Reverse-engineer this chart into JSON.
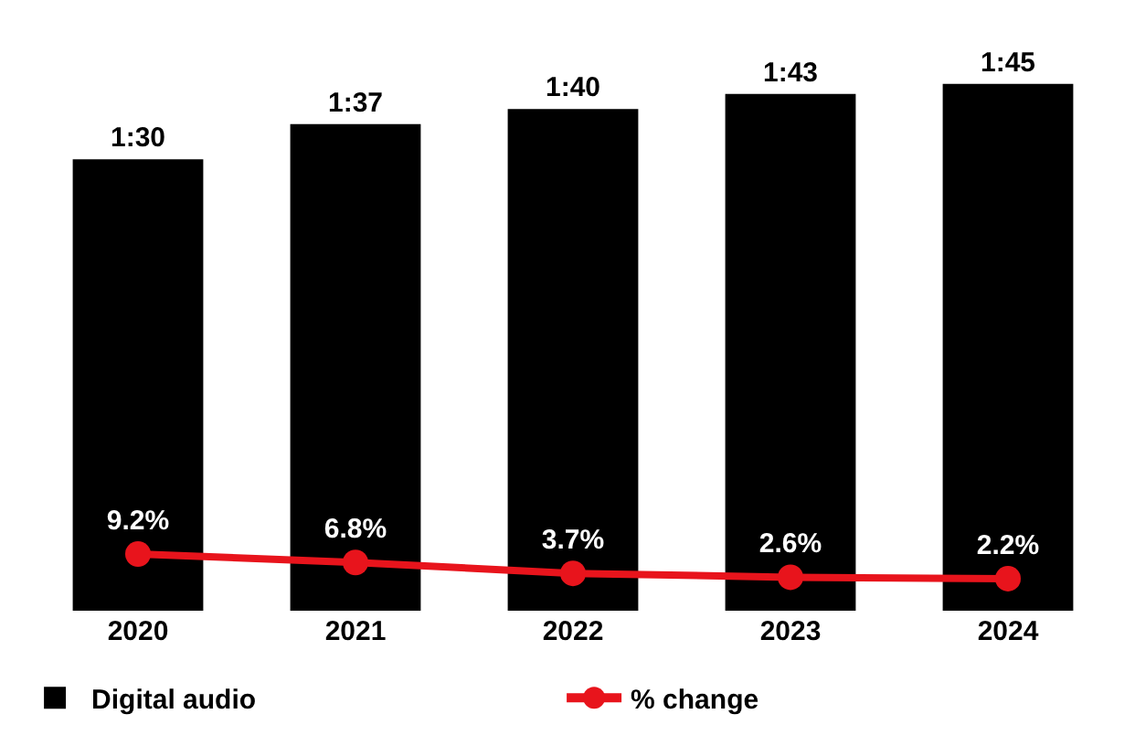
{
  "chart_data": {
    "type": "bar",
    "categories": [
      "2020",
      "2021",
      "2022",
      "2023",
      "2024"
    ],
    "series": [
      {
        "name": "Digital audio",
        "color": "#000000",
        "values": [
          90,
          97,
          100,
          103,
          105
        ],
        "value_labels": [
          "1:30",
          "1:37",
          "1:40",
          "1:43",
          "1:45"
        ]
      },
      {
        "name": "% change",
        "type": "line",
        "axis": "y2",
        "color": "#e8141c",
        "values": [
          9.2,
          6.8,
          3.7,
          2.6,
          2.2
        ],
        "value_labels": [
          "9.2%",
          "6.8%",
          "3.7%",
          "2.6%",
          "2.2%"
        ]
      }
    ],
    "marker": "circle",
    "legend": "bottom",
    "grid": false
  }
}
